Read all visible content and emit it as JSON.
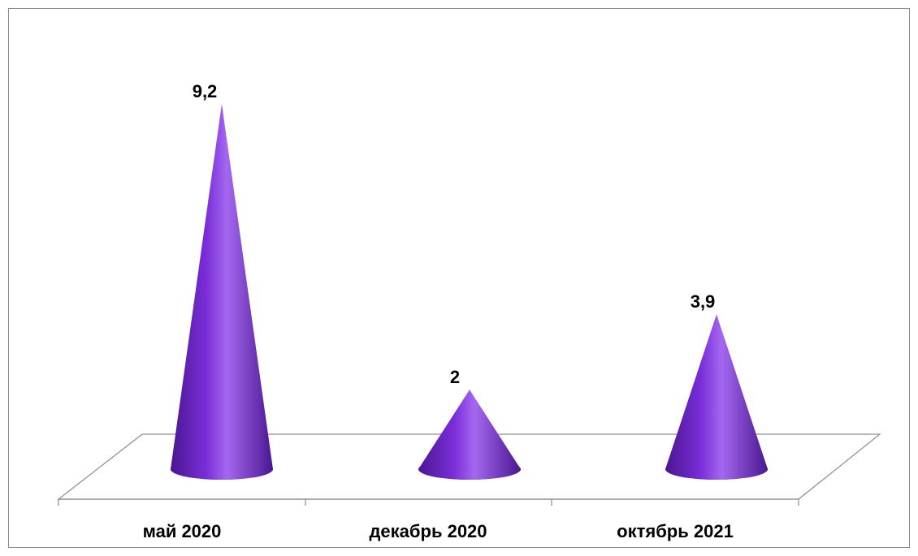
{
  "chart_data": {
    "type": "bar",
    "bar_shape": "cone",
    "view": "3d",
    "categories": [
      "май 2020",
      "декабрь 2020",
      "октябрь 2021"
    ],
    "values": [
      9.2,
      2,
      3.9
    ],
    "data_labels": [
      "9,2",
      "2",
      "3,9"
    ],
    "ylim": [
      0,
      10
    ],
    "grid": false,
    "legend": "none",
    "title": "",
    "xlabel": "",
    "ylabel": "",
    "colors": {
      "cone_dark": "#4a1690",
      "cone_mid": "#7a2ed8",
      "cone_light": "#a468f0",
      "floor_stroke": "#8c8c8c",
      "frame_stroke": "#8c8c8c",
      "text": "#000000"
    }
  }
}
